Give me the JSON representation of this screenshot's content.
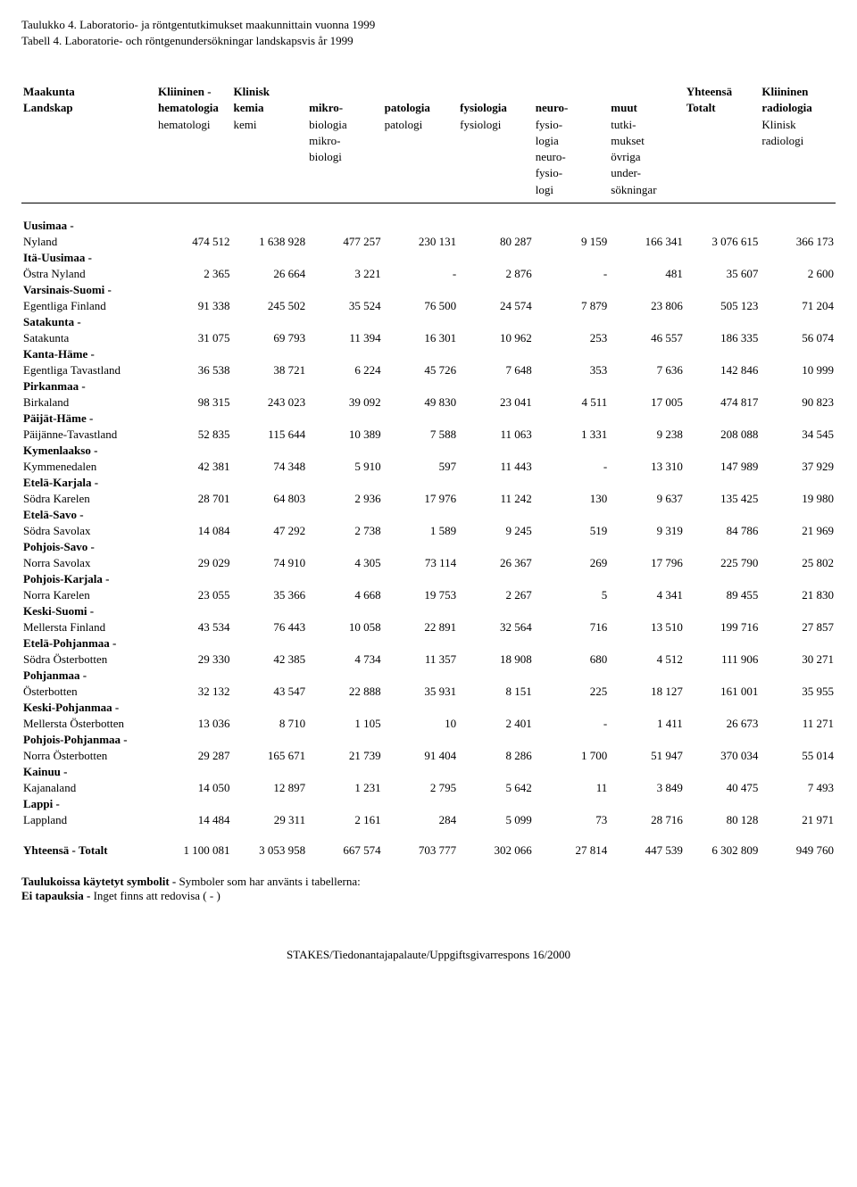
{
  "title": "Taulukko 4. Laboratorio- ja röntgentutkimukset maakunnittain vuonna 1999",
  "subtitle": "Tabell 4. Laboratorie- och röntgenundersökningar landskapsvis år 1999",
  "header": {
    "col0": [
      "Maakunta",
      "Landskap"
    ],
    "cols": [
      [
        "Kliininen -",
        "hematologia",
        "hematologi"
      ],
      [
        "Klinisk",
        "kemia",
        "kemi"
      ],
      [
        "",
        "mikro-",
        "biologia",
        "mikro-",
        "biologi"
      ],
      [
        "",
        "patologia",
        "patologi"
      ],
      [
        "",
        "fysiologia",
        "fysiologi"
      ],
      [
        "",
        "neuro-",
        "fysio-",
        "logia",
        "neuro-",
        "fysio-",
        "logi"
      ],
      [
        "",
        "muut",
        "tutki-",
        "mukset",
        "övriga",
        "under-",
        "sökningar"
      ],
      [
        "Yhteensä",
        "Totalt"
      ],
      [
        "Kliininen",
        "radiologia",
        "Klinisk",
        "radiologi"
      ]
    ]
  },
  "regions": [
    {
      "group": "Uusimaa -",
      "name": "Nyland",
      "vals": [
        "474 512",
        "1 638 928",
        "477 257",
        "230 131",
        "80 287",
        "9 159",
        "166 341",
        "3 076 615",
        "366 173"
      ]
    },
    {
      "group": "Itä-Uusimaa -",
      "name": "Östra Nyland",
      "vals": [
        "2 365",
        "26 664",
        "3 221",
        "-",
        "2 876",
        "-",
        "481",
        "35 607",
        "2 600"
      ]
    },
    {
      "group": "Varsinais-Suomi -",
      "name": "Egentliga Finland",
      "vals": [
        "91 338",
        "245 502",
        "35 524",
        "76 500",
        "24 574",
        "7 879",
        "23 806",
        "505 123",
        "71 204"
      ]
    },
    {
      "group": "Satakunta -",
      "name": "Satakunta",
      "vals": [
        "31 075",
        "69 793",
        "11 394",
        "16 301",
        "10 962",
        "253",
        "46 557",
        "186 335",
        "56 074"
      ]
    },
    {
      "group": "Kanta-Häme -",
      "name": "Egentliga Tavastland",
      "vals": [
        "36 538",
        "38 721",
        "6 224",
        "45 726",
        "7 648",
        "353",
        "7 636",
        "142 846",
        "10 999"
      ]
    },
    {
      "group": "Pirkanmaa -",
      "name": "Birkaland",
      "vals": [
        "98 315",
        "243 023",
        "39 092",
        "49 830",
        "23 041",
        "4 511",
        "17 005",
        "474 817",
        "90 823"
      ]
    },
    {
      "group": "Päijät-Häme -",
      "name": "Päijänne-Tavastland",
      "vals": [
        "52 835",
        "115 644",
        "10 389",
        "7 588",
        "11 063",
        "1 331",
        "9 238",
        "208 088",
        "34 545"
      ]
    },
    {
      "group": "Kymenlaakso -",
      "name": "Kymmenedalen",
      "vals": [
        "42 381",
        "74 348",
        "5 910",
        "597",
        "11 443",
        "-",
        "13 310",
        "147 989",
        "37 929"
      ]
    },
    {
      "group": "Etelä-Karjala -",
      "name": "Södra Karelen",
      "vals": [
        "28 701",
        "64 803",
        "2 936",
        "17 976",
        "11 242",
        "130",
        "9 637",
        "135 425",
        "19 980"
      ]
    },
    {
      "group": "Etelä-Savo -",
      "name": "Södra Savolax",
      "vals": [
        "14 084",
        "47 292",
        "2 738",
        "1 589",
        "9 245",
        "519",
        "9 319",
        "84 786",
        "21 969"
      ]
    },
    {
      "group": "Pohjois-Savo -",
      "name": "Norra Savolax",
      "vals": [
        "29 029",
        "74 910",
        "4 305",
        "73 114",
        "26 367",
        "269",
        "17 796",
        "225 790",
        "25 802"
      ]
    },
    {
      "group": "Pohjois-Karjala -",
      "name": "Norra Karelen",
      "vals": [
        "23 055",
        "35 366",
        "4 668",
        "19 753",
        "2 267",
        "5",
        "4 341",
        "89 455",
        "21 830"
      ]
    },
    {
      "group": "Keski-Suomi -",
      "name": "Mellersta Finland",
      "vals": [
        "43 534",
        "76 443",
        "10 058",
        "22 891",
        "32 564",
        "716",
        "13 510",
        "199 716",
        "27 857"
      ]
    },
    {
      "group": "Etelä-Pohjanmaa -",
      "name": "Södra Österbotten",
      "vals": [
        "29 330",
        "42 385",
        "4 734",
        "11 357",
        "18 908",
        "680",
        "4 512",
        "111 906",
        "30 271"
      ]
    },
    {
      "group": "Pohjanmaa -",
      "name": "Österbotten",
      "vals": [
        "32 132",
        "43 547",
        "22 888",
        "35 931",
        "8 151",
        "225",
        "18 127",
        "161 001",
        "35 955"
      ]
    },
    {
      "group": "Keski-Pohjanmaa -",
      "name": "Mellersta Österbotten",
      "vals": [
        "13 036",
        "8 710",
        "1 105",
        "10",
        "2 401",
        "-",
        "1 411",
        "26 673",
        "11 271"
      ]
    },
    {
      "group": "Pohjois-Pohjanmaa -",
      "name": "Norra Österbotten",
      "vals": [
        "29 287",
        "165 671",
        "21 739",
        "91 404",
        "8 286",
        "1 700",
        "51 947",
        "370 034",
        "55 014"
      ]
    },
    {
      "group": "Kainuu -",
      "name": "Kajanaland",
      "vals": [
        "14 050",
        "12 897",
        "1 231",
        "2 795",
        "5 642",
        "11",
        "3 849",
        "40 475",
        "7 493"
      ]
    },
    {
      "group": "Lappi -",
      "name": "Lappland",
      "vals": [
        "14 484",
        "29 311",
        "2 161",
        "284",
        "5 099",
        "73",
        "28 716",
        "80 128",
        "21 971"
      ]
    }
  ],
  "total": {
    "label": "Yhteensä - Totalt",
    "vals": [
      "1 100 081",
      "3 053 958",
      "667 574",
      "703 777",
      "302 066",
      "27 814",
      "447 539",
      "6 302 809",
      "949 760"
    ]
  },
  "footnote1_bold": "Taulukoissa käytetyt symbolit - ",
  "footnote1_rest": "Symboler som har använts i tabellerna:",
  "footnote2_bold": "Ei tapauksia - ",
  "footnote2_rest": "Inget finns att redovisa ( - )",
  "footer": "STAKES/Tiedonantajapalaute/Uppgiftsgivarrespons 16/2000"
}
